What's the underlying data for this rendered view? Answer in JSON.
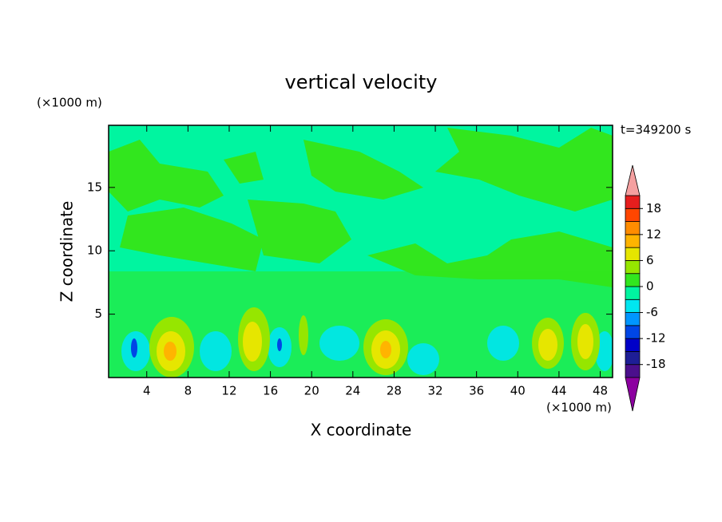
{
  "chart_data": {
    "type": "contour",
    "title": "vertical velocity",
    "x_label": "X coordinate",
    "y_label": "Z coordinate",
    "x_unit": "(×1000 m)",
    "y_unit": "(×1000 m)",
    "annotation": "t=349200 s",
    "xlim": [
      0.3,
      49.2
    ],
    "ylim": [
      0,
      19.9
    ],
    "xticks": [
      4,
      8,
      12,
      16,
      20,
      24,
      28,
      32,
      36,
      40,
      44,
      48
    ],
    "yticks": [
      5,
      10,
      15
    ],
    "colorbar": {
      "levels": [
        -21,
        -18,
        -15,
        -12,
        -9,
        -6,
        -3,
        0,
        3,
        6,
        9,
        12,
        15,
        18,
        21
      ],
      "colors": [
        "#4b0f8c",
        "#1e1e96",
        "#0000c8",
        "#0046e6",
        "#0096ff",
        "#00e6f0",
        "#00f5a0",
        "#32e61e",
        "#96e600",
        "#e6e600",
        "#ffb400",
        "#ff8c00",
        "#ff4600",
        "#e61e1e"
      ],
      "under_color": "#8c00a0",
      "over_color": "#f5a0a0",
      "ticks": [
        -18,
        -12,
        -6,
        0,
        6,
        12,
        18
      ]
    }
  }
}
